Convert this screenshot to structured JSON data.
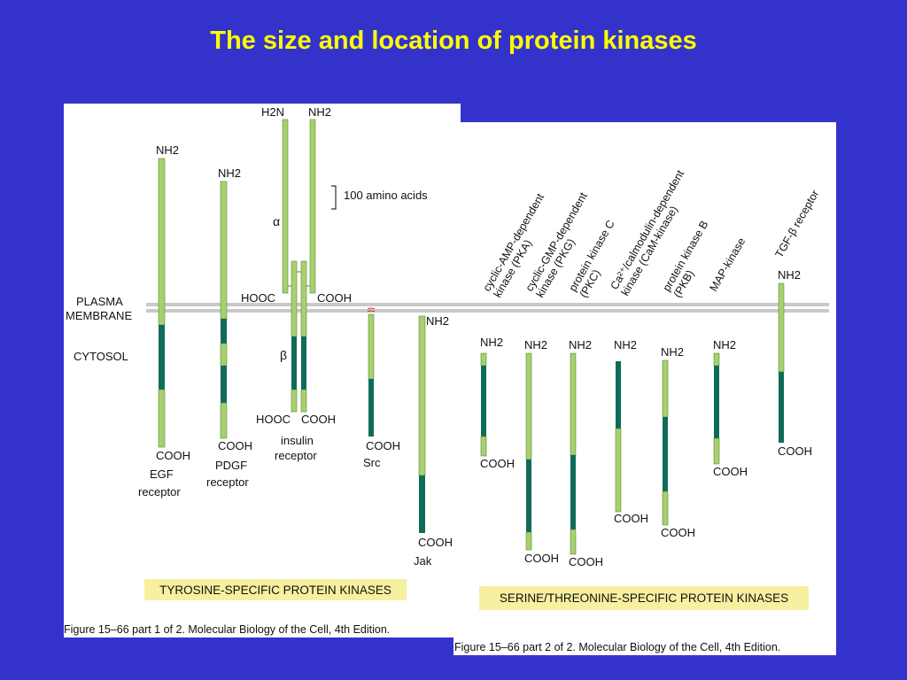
{
  "title": "The size and location of protein kinases",
  "colors": {
    "background": "#3333cc",
    "title": "#ffff00",
    "light_segment": "#a8d070",
    "dark_segment": "#0f6b5a",
    "membrane": "#c8c8c8",
    "banner": "#f6f0a0"
  },
  "panel1": {
    "membrane_label_1": "PLASMA",
    "membrane_label_2": "MEMBRANE",
    "cytosol_label": "CYTOSOL",
    "scale_label": "100 amino acids",
    "egf": {
      "top_label": "NH2",
      "bottom_label": "COOH",
      "name_1": "EGF",
      "name_2": "receptor"
    },
    "pdgf": {
      "top_label": "NH2",
      "bottom_label": "COOH",
      "name_1": "PDGF",
      "name_2": "receptor"
    },
    "insulin": {
      "top_left": "H2N",
      "top_right": "NH2",
      "alpha": "α",
      "beta": "β",
      "mid_left": "HOOC",
      "mid_right": "COOH",
      "bottom_left": "HOOC",
      "bottom_right": "COOH",
      "name_1": "insulin",
      "name_2": "receptor"
    },
    "src": {
      "bottom_label": "COOH",
      "name": "Src"
    },
    "jak": {
      "top_label": "NH2",
      "bottom_label": "COOH",
      "name": "Jak"
    },
    "banner": "TYROSINE-SPECIFIC PROTEIN KINASES",
    "caption": "Figure 15–66 part 1 of 2. Molecular Biology of the Cell, 4th Edition."
  },
  "panel2": {
    "kinases": [
      {
        "name_1": "cyclic-AMP-dependent",
        "name_2": "kinase (PKA)",
        "top_label": "NH2",
        "bottom_label": "COOH"
      },
      {
        "name_1": "cyclic-GMP-dependent",
        "name_2": "kinase (PKG)",
        "top_label": "NH2",
        "bottom_label": "COOH"
      },
      {
        "name_1": "protein kinase C",
        "name_2": "(PKC)",
        "top_label": "NH2",
        "bottom_label": "COOH"
      },
      {
        "name_1": "Ca²⁺/calmodulin-dependent",
        "name_2": "kinase (CaM-kinase)",
        "top_label": "NH2",
        "bottom_label": "COOH"
      },
      {
        "name_1": "protein kinase B",
        "name_2": "(PKB)",
        "top_label": "NH2",
        "bottom_label": "COOH"
      },
      {
        "name_1": "MAP-kinase",
        "name_2": "",
        "top_label": "NH2",
        "bottom_label": "COOH"
      },
      {
        "name_1": "TGF-β receptor",
        "name_2": "",
        "top_label": "NH2",
        "bottom_label": "COOH"
      }
    ],
    "banner": "SERINE/THREONINE-SPECIFIC PROTEIN KINASES",
    "caption": "Figure 15–66 part 2 of 2. Molecular Biology of the Cell, 4th Edition."
  }
}
